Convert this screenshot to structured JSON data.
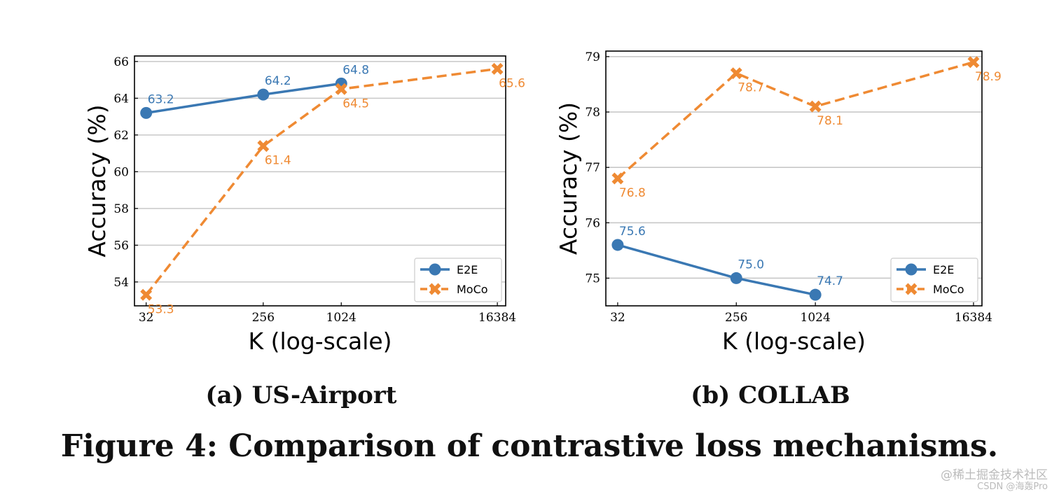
{
  "figure_caption": "Figure 4: Comparison of contrastive loss mechanisms.",
  "colors": {
    "e2e": "#3a78b3",
    "moco": "#ef8a33",
    "grid": "#c8c8c8",
    "axis": "#000000"
  },
  "chart_data": [
    {
      "type": "line",
      "subcaption": "(a) US-Airport",
      "xlabel": "K (log-scale)",
      "ylabel": "Accuracy (%)",
      "x_scale": "log2",
      "categories": [
        "32",
        "256",
        "1024",
        "16384"
      ],
      "x": [
        32,
        256,
        1024,
        16384
      ],
      "xlim": [
        26,
        19000
      ],
      "ylim": [
        52.7,
        66.3
      ],
      "yticks": [
        54,
        56,
        58,
        60,
        62,
        64,
        66
      ],
      "grid": "y",
      "legend": "lower-right",
      "series": [
        {
          "name": "E2E",
          "marker": "circle",
          "linestyle": "solid",
          "x": [
            32,
            256,
            1024
          ],
          "values": [
            63.2,
            64.2,
            64.8
          ],
          "labels": [
            "63.2",
            "64.2",
            "64.8"
          ],
          "label_side": "above"
        },
        {
          "name": "MoCo",
          "marker": "x",
          "linestyle": "dashed",
          "x": [
            32,
            256,
            1024,
            16384
          ],
          "values": [
            53.3,
            61.4,
            64.5,
            65.6
          ],
          "labels": [
            "53.3",
            "61.4",
            "64.5",
            "65.6"
          ],
          "label_side": "below"
        }
      ]
    },
    {
      "type": "line",
      "subcaption": "(b) COLLAB",
      "xlabel": "K (log-scale)",
      "ylabel": "Accuracy (%)",
      "x_scale": "log2",
      "categories": [
        "32",
        "256",
        "1024",
        "16384"
      ],
      "x": [
        32,
        256,
        1024,
        16384
      ],
      "xlim": [
        26,
        19000
      ],
      "ylim": [
        74.5,
        79.1
      ],
      "yticks": [
        75,
        76,
        77,
        78,
        79
      ],
      "grid": "y",
      "legend": "lower-right",
      "series": [
        {
          "name": "E2E",
          "marker": "circle",
          "linestyle": "solid",
          "x": [
            32,
            256,
            1024
          ],
          "values": [
            75.6,
            75.0,
            74.7
          ],
          "labels": [
            "75.6",
            "75.0",
            "74.7"
          ],
          "label_side": "above"
        },
        {
          "name": "MoCo",
          "marker": "x",
          "linestyle": "dashed",
          "x": [
            32,
            256,
            1024,
            16384
          ],
          "values": [
            76.8,
            78.7,
            78.1,
            78.9
          ],
          "labels": [
            "76.8",
            "78.7",
            "78.1",
            "78.9"
          ],
          "label_side": "below"
        }
      ]
    }
  ],
  "watermark": {
    "line1": "@稀土掘金技术社区",
    "line2": "CSDN @海轰Pro"
  }
}
